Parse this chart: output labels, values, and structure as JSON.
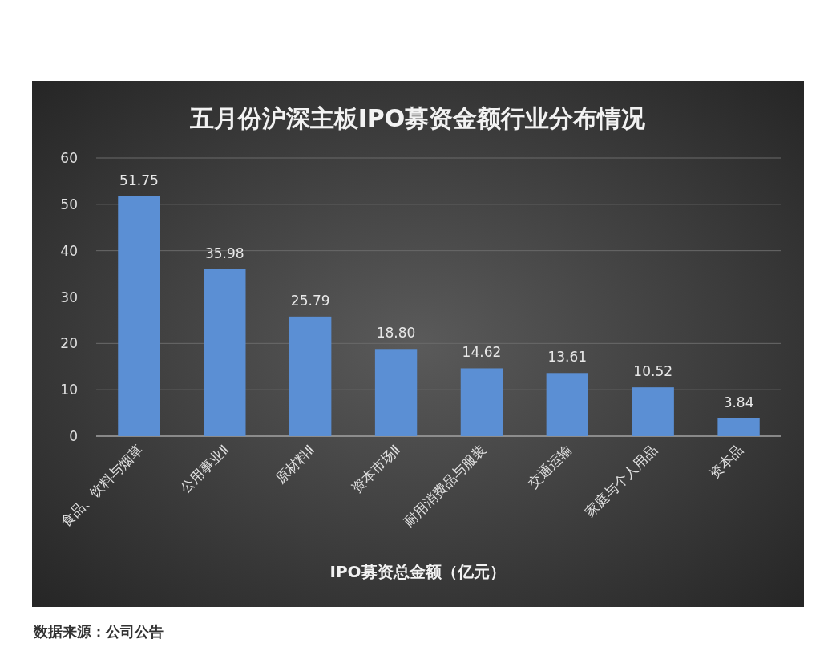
{
  "chart_data": {
    "type": "bar",
    "title": "五月份沪深主板IPO募资金额行业分布情况",
    "xlabel": "IPO募资总金额（亿元）",
    "categories": [
      "食品、饮料与烟草",
      "公用事业Ⅱ",
      "原材料Ⅱ",
      "资本市场Ⅱ",
      "耐用消费品与服装",
      "交通运输",
      "家庭与个人用品",
      "资本品"
    ],
    "values": [
      51.75,
      35.98,
      25.79,
      18.8,
      14.62,
      13.61,
      10.52,
      3.84
    ],
    "value_labels": [
      "51.75",
      "35.98",
      "25.79",
      "18.80",
      "14.62",
      "13.61",
      "10.52",
      "3.84"
    ],
    "color": "#5b8fd4",
    "ylim": [
      0,
      60
    ],
    "yticks": [
      0,
      10,
      20,
      30,
      40,
      50,
      60
    ],
    "grid": "y",
    "annotations": [
      "数据来源：公司公告"
    ]
  }
}
